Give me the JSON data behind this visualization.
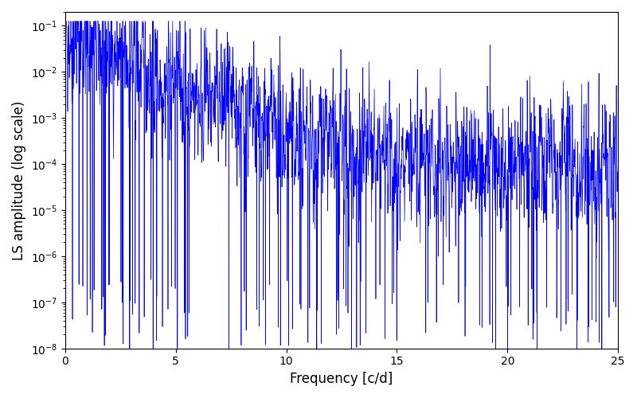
{
  "xlabel": "Frequency [c/d]",
  "ylabel": "LS amplitude (log scale)",
  "line_color": "#0000ff",
  "xlim": [
    0,
    25
  ],
  "ylim": [
    1e-08,
    0.2
  ],
  "background_color": "#ffffff",
  "figsize": [
    8.0,
    5.0
  ],
  "dpi": 100,
  "xticks": [
    0,
    5,
    10,
    15,
    20,
    25
  ]
}
